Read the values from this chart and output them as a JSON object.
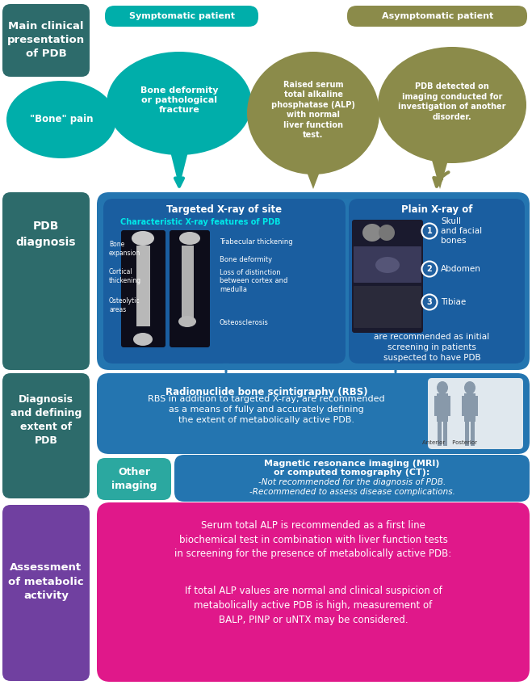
{
  "bg_color": "#ffffff",
  "dark_teal": "#2d6b6b",
  "teal": "#00aeaa",
  "olive": "#8b8b4a",
  "blue_box": "#2475b0",
  "blue_inner": "#1a5ea0",
  "teal_other": "#2ba8a0",
  "pink": "#e0188a",
  "purple": "#7040a0",
  "white": "#ffffff",
  "cyan_text": "#00e8e8",
  "section1_label": "Main clinical\npresentation\nof PDB",
  "symptomatic_label": "Symptomatic patient",
  "asymptomatic_label": "Asymptomatic patient",
  "bone_pain_label": "\"Bone\" pain",
  "bone_deformity_label": "Bone deformity\nor pathological\nfracture",
  "raised_serum_label": "Raised serum\ntotal alkaline\nphosphatase (ALP)\nwith normal\nliver function\ntest.",
  "pdb_detected_label": "PDB detected on\nimaging conducted for\ninvestigation of another\ndisorder.",
  "section2_label": "PDB\ndiagnosis",
  "targeted_xray_title": "Targeted X-ray of site",
  "char_xray_title": "Characteristic X-ray features of PDB",
  "bone_expansion": "Bone\nexpansion",
  "cortical_thick": "Cortical\nthickening",
  "osteo_areas": "Osteolytic\nareas",
  "trabecular": "Trabecular thickening",
  "bone_deform_lbl": "Bone deformity",
  "loss_of_dist": "Loss of distinction\nbetween cortex and\nmedulla",
  "osteosclerosis": "Osteosclerosis",
  "plain_xray_title": "Plain X-ray of",
  "skull": "Skull\nand facial\nbones",
  "abdomen": "Abdomen",
  "tibiae": "Tibiae",
  "plain_xray_desc": "are recommended as initial\nscreening in patients\nsuspected to have PDB",
  "section3_label": "Diagnosis\nand defining\nextent of\nPDB",
  "rbs_line1": "Radionuclide bone scintigraphy (RBS)",
  "rbs_line2": "RBS in addition to targeted X-ray, are recommended\nas a means of fully and accurately defining\nthe extent of metabolically active PDB.",
  "anterior_posterior": "Anterior    Posterior",
  "other_imaging_label": "Other\nimaging",
  "mri_line1": "Magnetic resonance imaging (MRI)",
  "mri_line2": "or computed tomography (CT):",
  "mri_line3": "-Not recommended for the diagnosis of PDB.",
  "mri_line4": "-Recommended to assess disease complications.",
  "section4_label": "Assessment\nof metabolic\nactivity",
  "assess_text1": "Serum total ALP is recommended as a first line\nbiochemical test in combination with liver function tests\nin screening for the presence of metabolically active PDB:",
  "assess_text2": "If total ALP values are normal and clinical suspicion of\nmetabolically active PDB is high, measurement of\nBALP, PINP or uNTX may be considered."
}
